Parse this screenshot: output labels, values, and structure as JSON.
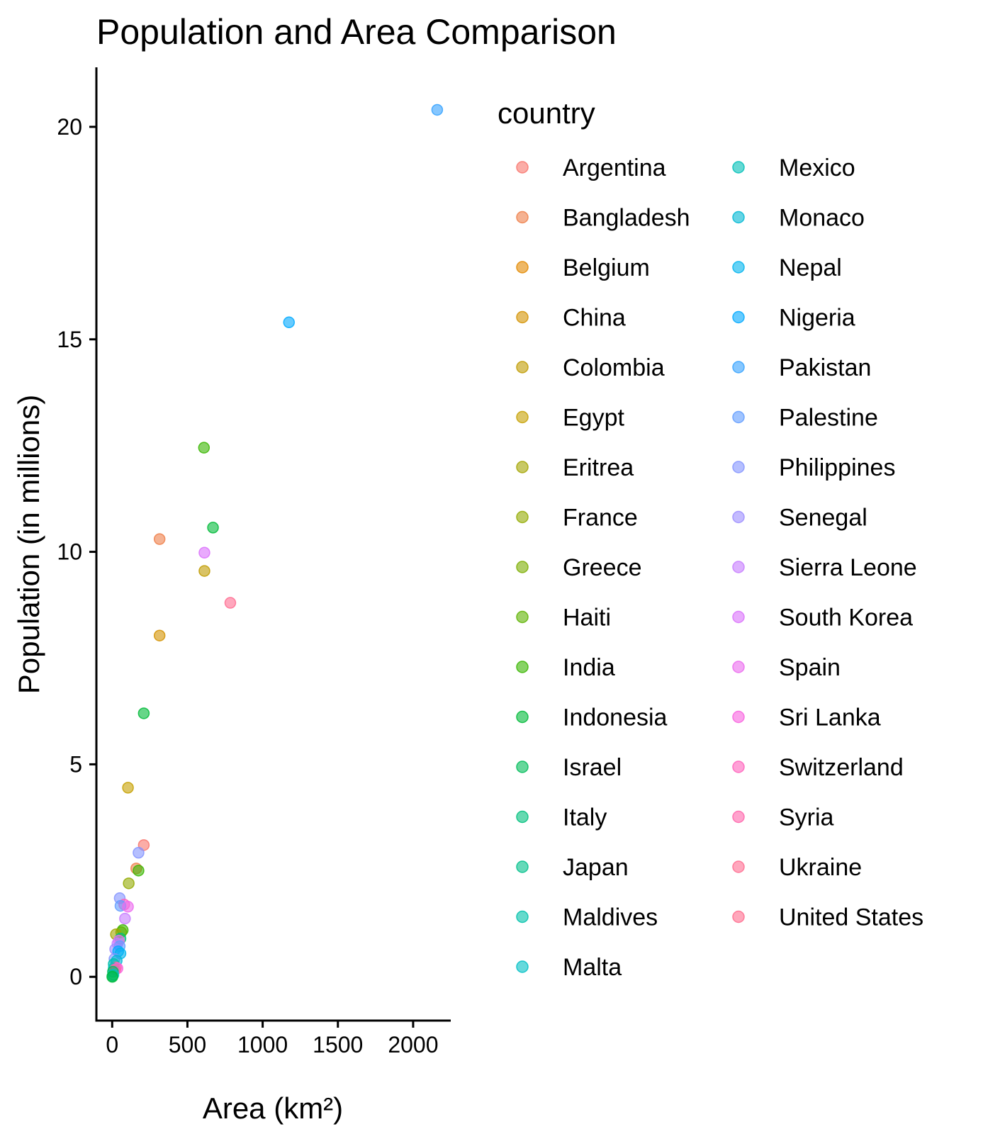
{
  "chart_data": {
    "type": "scatter",
    "title": "Population and Area Comparison",
    "xlabel": "Area (km²)",
    "ylabel": "Population (in millions)",
    "xlim": [
      -105,
      2250
    ],
    "ylim": [
      -1.03,
      21.4
    ],
    "x_ticks": [
      0,
      500,
      1000,
      1500,
      2000
    ],
    "y_ticks": [
      0,
      5,
      10,
      15,
      20
    ],
    "x_tick_labels": [
      "0",
      "500",
      "1000",
      "1500",
      "2000"
    ],
    "y_tick_labels": [
      "0",
      "5",
      "10",
      "15",
      "20"
    ],
    "grid": false,
    "legend": {
      "title": "country",
      "placement": "right",
      "columns": 2,
      "entries": [
        {
          "name": "Argentina",
          "color": "#F8766D"
        },
        {
          "name": "Bangladesh",
          "color": "#EF7F49"
        },
        {
          "name": "Belgium",
          "color": "#E38900"
        },
        {
          "name": "China",
          "color": "#D39200"
        },
        {
          "name": "Colombia",
          "color": "#C09B00"
        },
        {
          "name": "Egypt",
          "color": "#C6A000"
        },
        {
          "name": "Eritrea",
          "color": "#A3A500"
        },
        {
          "name": "France",
          "color": "#93AA00"
        },
        {
          "name": "Greece",
          "color": "#7CAE00"
        },
        {
          "name": "Haiti",
          "color": "#5EB300"
        },
        {
          "name": "India",
          "color": "#39B600"
        },
        {
          "name": "Indonesia",
          "color": "#00BA38"
        },
        {
          "name": "Israel",
          "color": "#00BC59"
        },
        {
          "name": "Italy",
          "color": "#00BF7D"
        },
        {
          "name": "Japan",
          "color": "#00C08B"
        },
        {
          "name": "Maldives",
          "color": "#00C1AA"
        },
        {
          "name": "Malta",
          "color": "#00BFC4"
        },
        {
          "name": "Mexico",
          "color": "#00C0B8"
        },
        {
          "name": "Monaco",
          "color": "#00B8D4"
        },
        {
          "name": "Nepal",
          "color": "#00B4EF"
        },
        {
          "name": "Nigeria",
          "color": "#00A9FF"
        },
        {
          "name": "Pakistan",
          "color": "#35A2FF"
        },
        {
          "name": "Palestine",
          "color": "#619CFF"
        },
        {
          "name": "Philippines",
          "color": "#8494FF"
        },
        {
          "name": "Senegal",
          "color": "#9C8DFF"
        },
        {
          "name": "Sierra Leone",
          "color": "#C77CFF"
        },
        {
          "name": "South Korea",
          "color": "#DB72FB"
        },
        {
          "name": "Spain",
          "color": "#EB6AEF"
        },
        {
          "name": "Sri Lanka",
          "color": "#F863DF"
        },
        {
          "name": "Switzerland",
          "color": "#FF62BC"
        },
        {
          "name": "Syria",
          "color": "#FF65AC"
        },
        {
          "name": "Ukraine",
          "color": "#FF6C91"
        },
        {
          "name": "United States",
          "color": "#FF6C8E"
        }
      ]
    },
    "points": [
      {
        "x": 2160,
        "y": 20.4,
        "color": "#35A2FF"
      },
      {
        "x": 1175,
        "y": 15.4,
        "color": "#00A9FF"
      },
      {
        "x": 610,
        "y": 12.45,
        "color": "#39B600"
      },
      {
        "x": 670,
        "y": 10.57,
        "color": "#00BA38"
      },
      {
        "x": 315,
        "y": 10.3,
        "color": "#EF7F49"
      },
      {
        "x": 613,
        "y": 9.98,
        "color": "#DB72FB"
      },
      {
        "x": 613,
        "y": 9.55,
        "color": "#C09B00"
      },
      {
        "x": 785,
        "y": 8.8,
        "color": "#FF6C91"
      },
      {
        "x": 315,
        "y": 8.03,
        "color": "#D39200"
      },
      {
        "x": 210,
        "y": 6.2,
        "color": "#00BA38"
      },
      {
        "x": 105,
        "y": 4.45,
        "color": "#C6A000"
      },
      {
        "x": 210,
        "y": 3.1,
        "color": "#F8766D"
      },
      {
        "x": 175,
        "y": 2.92,
        "color": "#8494FF"
      },
      {
        "x": 160,
        "y": 2.55,
        "color": "#EF7F49"
      },
      {
        "x": 175,
        "y": 2.5,
        "color": "#39B600"
      },
      {
        "x": 110,
        "y": 2.2,
        "color": "#93AA00"
      },
      {
        "x": 50,
        "y": 1.85,
        "color": "#8494FF"
      },
      {
        "x": 80,
        "y": 1.7,
        "color": "#FF62BC"
      },
      {
        "x": 55,
        "y": 1.67,
        "color": "#619CFF"
      },
      {
        "x": 105,
        "y": 1.65,
        "color": "#EB6AEF"
      },
      {
        "x": 85,
        "y": 1.37,
        "color": "#C77CFF"
      },
      {
        "x": 70,
        "y": 1.1,
        "color": "#39B600"
      },
      {
        "x": 60,
        "y": 1.05,
        "color": "#5EB300"
      },
      {
        "x": 25,
        "y": 1.0,
        "color": "#A3A500"
      },
      {
        "x": 55,
        "y": 0.9,
        "color": "#00BF7D"
      },
      {
        "x": 45,
        "y": 0.85,
        "color": "#EB6AEF"
      },
      {
        "x": 35,
        "y": 0.78,
        "color": "#C77CFF"
      },
      {
        "x": 50,
        "y": 0.72,
        "color": "#619CFF"
      },
      {
        "x": 20,
        "y": 0.65,
        "color": "#9C8DFF"
      },
      {
        "x": 40,
        "y": 0.6,
        "color": "#00A9FF"
      },
      {
        "x": 55,
        "y": 0.55,
        "color": "#00B4EF"
      },
      {
        "x": 15,
        "y": 0.42,
        "color": "#8494FF"
      },
      {
        "x": 30,
        "y": 0.38,
        "color": "#00B8D4"
      },
      {
        "x": 10,
        "y": 0.3,
        "color": "#00C1AA"
      },
      {
        "x": 25,
        "y": 0.22,
        "color": "#FF6C8E"
      },
      {
        "x": 10,
        "y": 0.2,
        "color": "#00C0B8"
      },
      {
        "x": 35,
        "y": 0.2,
        "color": "#F863DF"
      },
      {
        "x": 20,
        "y": 0.17,
        "color": "#FF65AC"
      },
      {
        "x": 5,
        "y": 0.12,
        "color": "#00BC59"
      },
      {
        "x": 8,
        "y": 0.05,
        "color": "#00BFC4"
      },
      {
        "x": 2,
        "y": 0.02,
        "color": "#00C08B"
      },
      {
        "x": 1,
        "y": 0.0,
        "color": "#00BA38"
      }
    ]
  }
}
